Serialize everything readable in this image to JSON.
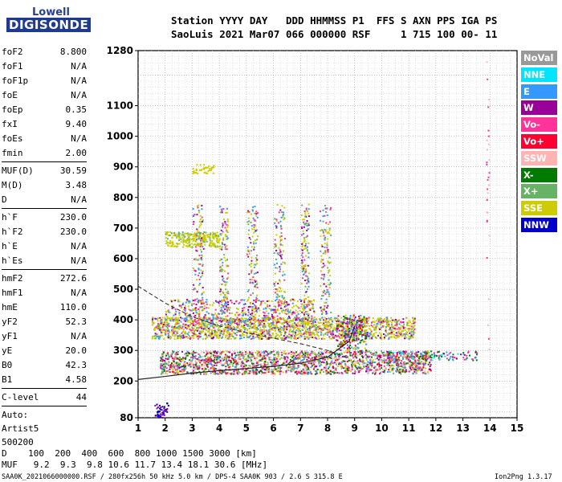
{
  "logo": {
    "line1": "Lowell",
    "line2": "DIGISONDE"
  },
  "header": {
    "line1": "Station YYYY DAY   DDD HHMMSS P1  FFS S AXN PPS IGA PS",
    "line2": "SaoLuis 2021 Mar07 066 000000 RSF     1 715 100 00- 11"
  },
  "params": {
    "group1": [
      {
        "label": "foF2",
        "value": "8.800"
      },
      {
        "label": "foF1",
        "value": "N/A"
      },
      {
        "label": "foF1p",
        "value": "N/A"
      },
      {
        "label": "foE",
        "value": "N/A"
      },
      {
        "label": "foEp",
        "value": "0.35"
      },
      {
        "label": "fxI",
        "value": "9.40"
      },
      {
        "label": "foEs",
        "value": "N/A"
      },
      {
        "label": "fmin",
        "value": "2.00"
      }
    ],
    "group2": [
      {
        "label": "MUF(D)",
        "value": "30.59"
      },
      {
        "label": "M(D)",
        "value": "3.48"
      },
      {
        "label": "D",
        "value": "N/A"
      }
    ],
    "group3": [
      {
        "label": "h`F",
        "value": "230.0"
      },
      {
        "label": "h`F2",
        "value": "230.0"
      },
      {
        "label": "h`E",
        "value": "N/A"
      },
      {
        "label": "h`Es",
        "value": "N/A"
      }
    ],
    "group4": [
      {
        "label": "hmF2",
        "value": "272.6"
      },
      {
        "label": "hmF1",
        "value": "N/A"
      },
      {
        "label": "hmE",
        "value": "110.0"
      },
      {
        "label": "yF2",
        "value": "52.3"
      },
      {
        "label": "yF1",
        "value": "N/A"
      },
      {
        "label": "yE",
        "value": "20.0"
      },
      {
        "label": "B0",
        "value": "42.3"
      },
      {
        "label": "B1",
        "value": "4.58"
      }
    ],
    "group5": [
      {
        "label": "C-level",
        "value": "44"
      }
    ],
    "autoscale": {
      "line1": "Auto:",
      "line2": "Artist5",
      "line3": "500200"
    }
  },
  "legend": [
    {
      "label": "NoVal",
      "color": "#999999"
    },
    {
      "label": "NNE",
      "color": "#00e5ff"
    },
    {
      "label": "E",
      "color": "#3399ff"
    },
    {
      "label": "W",
      "color": "#990099"
    },
    {
      "label": "Vo-",
      "color": "#ff3399"
    },
    {
      "label": "Vo+",
      "color": "#ff0033"
    },
    {
      "label": "SSW",
      "color": "#ffb3b3"
    },
    {
      "label": "X-",
      "color": "#007a00"
    },
    {
      "label": "X+",
      "color": "#66b366"
    },
    {
      "label": "SSE",
      "color": "#cccc00"
    },
    {
      "label": "NNW",
      "color": "#0000cc"
    }
  ],
  "bottom": {
    "d_line": "D    100  200  400  600  800 1000 1500 3000 [km]",
    "muf_line": "MUF   9.2  9.3  9.8 10.6 11.7 13.4 18.1 30.6 [MHz]",
    "file_line": "SAA0K_2021066000000.RSF / 280fx256h 50 kHz 5.0 km / DPS-4 SAA0K 903 / 2.6 S 315.8 E",
    "version": "Ion2Png 1.3.17"
  },
  "chart_data": {
    "type": "scatter",
    "xlim": [
      1,
      15
    ],
    "ylim": [
      80,
      1280
    ],
    "x_ticks": [
      "1",
      "2",
      "3",
      "4",
      "5",
      "6",
      "7",
      "8",
      "9",
      "10",
      "11",
      "12",
      "13",
      "14",
      "15"
    ],
    "y_ticks": [
      "80",
      "200",
      "300",
      "400",
      "500",
      "600",
      "700",
      "800",
      "900",
      "1000",
      "1100",
      "1280"
    ],
    "grid": true,
    "legend_position": "right",
    "traces": {
      "ordinary": {
        "color": "#ff0033",
        "x_range": [
          2.0,
          8.8
        ],
        "y_start": 230,
        "y_end": 300
      },
      "spread_f_band": {
        "color": "#cccc00",
        "x_range": [
          1.5,
          11.2
        ],
        "y_range": [
          340,
          410
        ]
      },
      "lower_spread": {
        "color": "#ff3399",
        "x_range": [
          1.8,
          11.8
        ],
        "y_range": [
          225,
          300
        ]
      },
      "upper_patch": {
        "color": "#cccc00",
        "x_range": [
          2.0,
          4.0
        ],
        "y_range": [
          640,
          690
        ]
      }
    },
    "profile_curve": [
      [
        1.0,
        510
      ],
      [
        2.0,
        455
      ],
      [
        3.0,
        410
      ],
      [
        4.0,
        380
      ],
      [
        5.0,
        358
      ],
      [
        6.0,
        340
      ],
      [
        7.0,
        322
      ],
      [
        8.0,
        300
      ],
      [
        8.8,
        272.6
      ]
    ],
    "trace_curve": [
      [
        1.0,
        205
      ],
      [
        2.0,
        215
      ],
      [
        3.0,
        226
      ],
      [
        4.0,
        234
      ],
      [
        5.0,
        241
      ],
      [
        6.0,
        248
      ],
      [
        7.0,
        258
      ],
      [
        8.0,
        278
      ],
      [
        8.8,
        330
      ],
      [
        9.0,
        380
      ]
    ]
  }
}
